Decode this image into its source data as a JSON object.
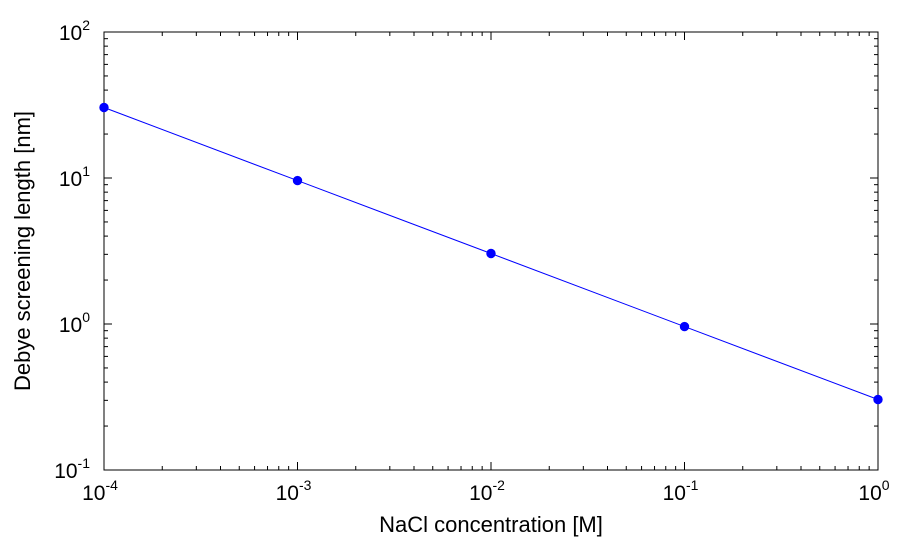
{
  "chart_data": {
    "type": "line",
    "title": "",
    "xlabel": "NaCl concentration [M]",
    "ylabel": "Debye screening length [nm]",
    "xscale": "log",
    "yscale": "log",
    "xlim": [
      0.0001,
      1
    ],
    "ylim": [
      0.1,
      100
    ],
    "grid": false,
    "x_ticks": [
      {
        "base": "10",
        "exp": "-4",
        "value": 0.0001
      },
      {
        "base": "10",
        "exp": "-3",
        "value": 0.001
      },
      {
        "base": "10",
        "exp": "-2",
        "value": 0.01
      },
      {
        "base": "10",
        "exp": "-1",
        "value": 0.1
      },
      {
        "base": "10",
        "exp": "0",
        "value": 1
      }
    ],
    "y_ticks": [
      {
        "base": "10",
        "exp": "-1",
        "value": 0.1
      },
      {
        "base": "10",
        "exp": "0",
        "value": 1
      },
      {
        "base": "10",
        "exp": "1",
        "value": 10
      },
      {
        "base": "10",
        "exp": "2",
        "value": 100
      }
    ],
    "series": [
      {
        "color": "#0000ff",
        "marker": "circle",
        "x": [
          0.0001,
          0.001,
          0.01,
          0.1,
          1
        ],
        "y": [
          30.4,
          9.6,
          3.04,
          0.96,
          0.304
        ]
      }
    ]
  }
}
